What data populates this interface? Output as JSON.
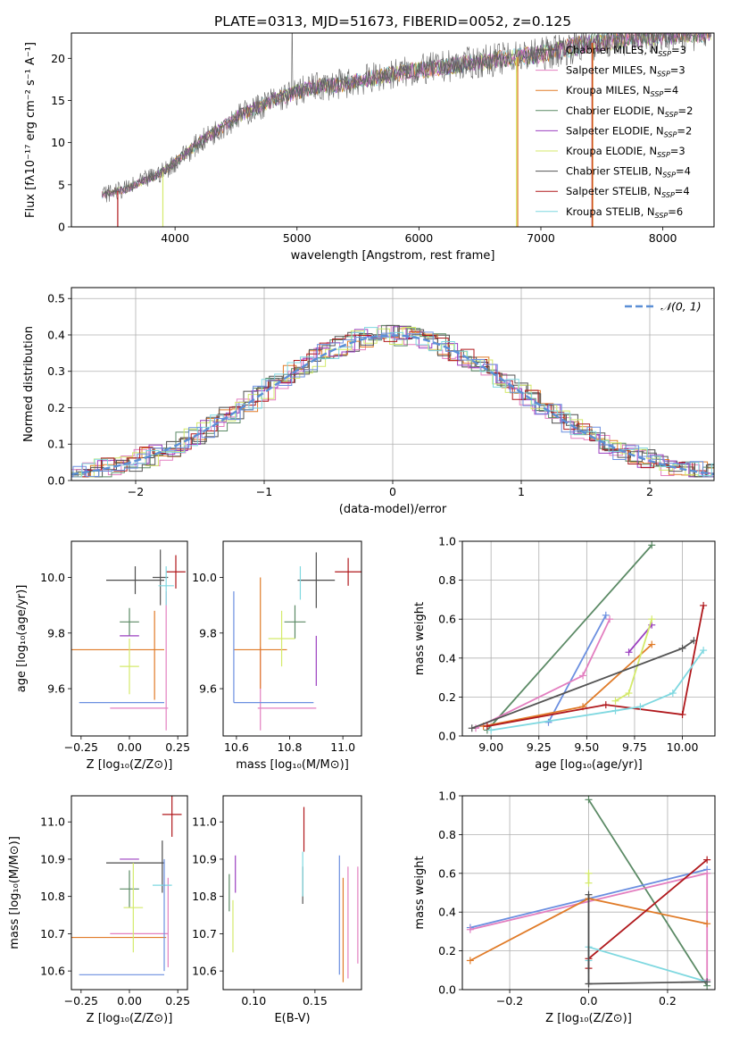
{
  "title": "PLATE=0313, MJD=51673, FIBERID=0052, z=0.125",
  "colors": {
    "Chabrier MILES": "#4d4d4d",
    "Salpeter MILES": "#e37fc0",
    "Kroupa MILES": "#e07b28",
    "Chabrier ELODIE": "#5b8a65",
    "Salpeter ELODIE": "#9b3fc0",
    "Kroupa ELODIE": "#d4ea6b",
    "Chabrier STELIB": "#555555",
    "Salpeter STELIB": "#b0181c",
    "Kroupa STELIB": "#7fd8e0",
    "blue_model": "#6b8fe0",
    "normal_curve": "#5b8fd6"
  },
  "chart_data": [
    {
      "id": "spectrum",
      "type": "line",
      "title": "PLATE=0313, MJD=51673, FIBERID=0052, z=0.125",
      "xlabel": "wavelength [Angstrom, rest frame]",
      "ylabel": "Flux [fλ10⁻¹⁷ erg cm⁻² s⁻¹ A⁻¹]",
      "xlim": [
        3150,
        8420
      ],
      "ylim": [
        0,
        23
      ],
      "xticks": [
        4000,
        5000,
        6000,
        7000,
        8000
      ],
      "yticks": [
        0,
        5,
        10,
        15,
        20
      ],
      "legend": [
        {
          "label": "Chabrier MILES, N",
          "sub": "SSP",
          "tail": "=3"
        },
        {
          "label": "Salpeter MILES, N",
          "sub": "SSP",
          "tail": "=3"
        },
        {
          "label": "Kroupa MILES, N",
          "sub": "SSP",
          "tail": "=4"
        },
        {
          "label": "Chabrier ELODIE, N",
          "sub": "SSP",
          "tail": "=2"
        },
        {
          "label": "Salpeter ELODIE, N",
          "sub": "SSP",
          "tail": "=2"
        },
        {
          "label": "Kroupa ELODIE, N",
          "sub": "SSP",
          "tail": "=3"
        },
        {
          "label": "Chabrier STELIB, N",
          "sub": "SSP",
          "tail": "=4"
        },
        {
          "label": "Salpeter STELIB, N",
          "sub": "SSP",
          "tail": "=4"
        },
        {
          "label": "Kroupa STELIB, N",
          "sub": "SSP",
          "tail": "=6"
        }
      ],
      "legend_position": "right",
      "data_trend": {
        "x": [
          3400,
          3600,
          3900,
          4200,
          4500,
          4800,
          5100,
          5400,
          5800,
          6200,
          6600,
          7000,
          7400,
          7800,
          8200
        ],
        "y": [
          3.8,
          4.5,
          6.5,
          10,
          13,
          15,
          16.5,
          17,
          18.2,
          19,
          19.8,
          20.5,
          21.8,
          22.5,
          23
        ]
      }
    },
    {
      "id": "residuals",
      "type": "histogram",
      "xlabel": "(data-model)/error",
      "ylabel": "Normed distribution",
      "xlim": [
        -2.5,
        2.5
      ],
      "ylim": [
        0,
        0.53
      ],
      "xticks": [
        -2,
        -1,
        0,
        1,
        2
      ],
      "yticks": [
        0.0,
        0.1,
        0.2,
        0.3,
        0.4,
        0.5
      ],
      "legend": "𝒩(0, 1)",
      "legend_position": "top-right",
      "grid": true
    },
    {
      "id": "age_vs_Z",
      "type": "errorbar",
      "xlabel": "Z [log₁₀(Z/Z⊙)]",
      "ylabel": "age  [log₁₀(age/yr)]",
      "xlim": [
        -0.3,
        0.3
      ],
      "ylim": [
        9.43,
        10.13
      ],
      "xticks": [
        -0.25,
        0.0,
        0.25
      ],
      "yticks": [
        9.6,
        9.8,
        10.0
      ],
      "points": [
        {
          "model": "Chabrier MILES",
          "x": 0.03,
          "xerr": 0.15,
          "y": 9.99,
          "yerr": 0.05
        },
        {
          "model": "Salpeter MILES",
          "x": 0.19,
          "xerr": 0.0,
          "y": 9.7,
          "yerr": 0.25
        },
        {
          "model": "Kroupa MILES",
          "x": -0.06,
          "xerr": 0.24,
          "y": 9.74,
          "yerr": 0.0
        },
        {
          "model": "Kroupa MILES",
          "x": 0.13,
          "xerr": 0.0,
          "y": 9.72,
          "yerr": 0.16
        },
        {
          "model": "Chabrier ELODIE",
          "x": 0.0,
          "xerr": 0.05,
          "y": 9.84,
          "yerr": 0.05
        },
        {
          "model": "Salpeter ELODIE",
          "x": 0.0,
          "xerr": 0.05,
          "y": 9.79,
          "yerr": 0.0
        },
        {
          "model": "Kroupa ELODIE",
          "x": 0.0,
          "xerr": 0.05,
          "y": 9.68,
          "yerr": 0.1
        },
        {
          "model": "Chabrier STELIB",
          "x": 0.16,
          "xerr": 0.04,
          "y": 10.0,
          "yerr": 0.1
        },
        {
          "model": "Salpeter STELIB",
          "x": 0.24,
          "xerr": 0.05,
          "y": 10.02,
          "yerr": 0.06
        },
        {
          "model": "Kroupa STELIB",
          "x": 0.19,
          "xerr": 0.04,
          "y": 9.97,
          "yerr": 0.07
        },
        {
          "model": "blue",
          "x": -0.04,
          "xerr": 0.22,
          "y": 9.55,
          "yerr": 0.0
        },
        {
          "model": "Salpeter MILES",
          "x": 0.05,
          "xerr": 0.15,
          "y": 9.53,
          "yerr": 0.0
        }
      ]
    },
    {
      "id": "age_vs_mass",
      "type": "errorbar",
      "xlabel": "mass [log₁₀(M/M⊙)]",
      "xlim": [
        10.55,
        11.07
      ],
      "ylim": [
        9.43,
        10.13
      ],
      "xticks": [
        10.6,
        10.8,
        11.0
      ],
      "yticks": [
        9.6,
        9.8,
        10.0
      ],
      "points": [
        {
          "model": "Chabrier MILES",
          "x": 10.9,
          "xerr": 0.07,
          "y": 9.99,
          "yerr": 0.1
        },
        {
          "model": "Salpeter MILES",
          "x": 10.69,
          "xerr": 0.0,
          "y": 9.6,
          "yerr": 0.15
        },
        {
          "model": "Kroupa MILES",
          "x": 10.69,
          "xerr": 0.0,
          "y": 9.8,
          "yerr": 0.2
        },
        {
          "model": "Kroupa MILES",
          "x": 10.69,
          "xerr": 0.1,
          "y": 9.74,
          "yerr": 0.0
        },
        {
          "model": "Chabrier ELODIE",
          "x": 10.82,
          "xerr": 0.04,
          "y": 9.84,
          "yerr": 0.06
        },
        {
          "model": "Salpeter ELODIE",
          "x": 10.9,
          "xerr": 0.0,
          "y": 9.7,
          "yerr": 0.09
        },
        {
          "model": "Kroupa ELODIE",
          "x": 10.77,
          "xerr": 0.05,
          "y": 9.78,
          "yerr": 0.1
        },
        {
          "model": "Kroupa STELIB",
          "x": 10.84,
          "xerr": 0.0,
          "y": 9.98,
          "yerr": 0.06
        },
        {
          "model": "Salpeter STELIB",
          "x": 11.02,
          "xerr": 0.05,
          "y": 10.02,
          "yerr": 0.05
        },
        {
          "model": "blue",
          "x": 10.59,
          "xerr": 0.0,
          "y": 9.75,
          "yerr": 0.2
        },
        {
          "model": "blue",
          "x": 10.74,
          "xerr": 0.15,
          "y": 9.55,
          "yerr": 0.0
        },
        {
          "model": "Salpeter MILES",
          "x": 10.79,
          "xerr": 0.11,
          "y": 9.53,
          "yerr": 0.0
        }
      ]
    },
    {
      "id": "weight_vs_age",
      "type": "line",
      "xlabel": "age  [log₁₀(age/yr)]",
      "ylabel": "mass weight",
      "xlim": [
        8.85,
        10.17
      ],
      "ylim": [
        0,
        1.0
      ],
      "xticks": [
        9.0,
        9.25,
        9.5,
        9.75,
        10.0
      ],
      "yticks": [
        0.0,
        0.2,
        0.4,
        0.6,
        0.8,
        1.0
      ],
      "grid": true,
      "series": [
        {
          "model": "Chabrier ELODIE",
          "x": [
            8.98,
            9.84
          ],
          "y": [
            0.03,
            0.98
          ]
        },
        {
          "model": "blue",
          "x": [
            9.3,
            9.6
          ],
          "y": [
            0.07,
            0.62
          ]
        },
        {
          "model": "Salpeter MILES",
          "x": [
            8.92,
            9.48,
            9.62
          ],
          "y": [
            0.04,
            0.31,
            0.6
          ]
        },
        {
          "model": "Kroupa MILES",
          "x": [
            8.96,
            9.48,
            9.84
          ],
          "y": [
            0.05,
            0.15,
            0.47
          ]
        },
        {
          "model": "Salpeter ELODIE",
          "x": [
            9.72,
            9.84
          ],
          "y": [
            0.43,
            0.57
          ]
        },
        {
          "model": "Kroupa ELODIE",
          "x": [
            9.65,
            9.72,
            9.84
          ],
          "y": [
            0.18,
            0.22,
            0.6
          ]
        },
        {
          "model": "Chabrier STELIB",
          "x": [
            8.9,
            10.0,
            10.06
          ],
          "y": [
            0.04,
            0.45,
            0.49
          ]
        },
        {
          "model": "Salpeter STELIB",
          "x": [
            8.98,
            9.6,
            10.0,
            10.11
          ],
          "y": [
            0.05,
            0.16,
            0.11,
            0.67
          ]
        },
        {
          "model": "Kroupa STELIB",
          "x": [
            9.0,
            9.65,
            9.78,
            9.95,
            10.11
          ],
          "y": [
            0.03,
            0.13,
            0.15,
            0.22,
            0.44
          ]
        }
      ]
    },
    {
      "id": "mass_vs_Z",
      "type": "errorbar",
      "xlabel": "Z [log₁₀(Z/Z⊙)]",
      "ylabel": "mass [log₁₀(M/M⊙)]",
      "xlim": [
        -0.3,
        0.3
      ],
      "ylim": [
        10.55,
        11.07
      ],
      "xticks": [
        -0.25,
        0.0,
        0.25
      ],
      "yticks": [
        10.6,
        10.7,
        10.8,
        10.9,
        11.0
      ],
      "points": [
        {
          "model": "Chabrier MILES",
          "x": 0.03,
          "xerr": 0.15,
          "y": 10.89,
          "yerr": 0.0
        },
        {
          "model": "Chabrier MILES",
          "x": 0.17,
          "xerr": 0.0,
          "y": 10.88,
          "yerr": 0.07
        },
        {
          "model": "Salpeter MILES",
          "x": 0.2,
          "xerr": 0.0,
          "y": 10.73,
          "yerr": 0.12
        },
        {
          "model": "Salpeter MILES",
          "x": 0.05,
          "xerr": 0.15,
          "y": 10.7,
          "yerr": 0.0
        },
        {
          "model": "Kroupa MILES",
          "x": -0.06,
          "xerr": 0.25,
          "y": 10.69,
          "yerr": 0.0
        },
        {
          "model": "Chabrier ELODIE",
          "x": 0.0,
          "xerr": 0.05,
          "y": 10.82,
          "yerr": 0.05
        },
        {
          "model": "Salpeter ELODIE",
          "x": 0.0,
          "xerr": 0.05,
          "y": 10.9,
          "yerr": 0.0
        },
        {
          "model": "Kroupa ELODIE",
          "x": 0.02,
          "xerr": 0.05,
          "y": 10.77,
          "yerr": 0.12
        },
        {
          "model": "Kroupa STELIB",
          "x": 0.17,
          "xerr": 0.05,
          "y": 10.83,
          "yerr": 0.0
        },
        {
          "model": "Salpeter STELIB",
          "x": 0.22,
          "xerr": 0.05,
          "y": 11.02,
          "yerr": 0.06
        },
        {
          "model": "blue",
          "x": -0.04,
          "xerr": 0.22,
          "y": 10.59,
          "yerr": 0.0
        },
        {
          "model": "blue",
          "x": 0.18,
          "xerr": 0.0,
          "y": 10.75,
          "yerr": 0.15
        }
      ]
    },
    {
      "id": "mass_vs_EBV",
      "type": "errorbar",
      "xlabel": "E(B-V)",
      "xlim": [
        0.075,
        0.188
      ],
      "ylim": [
        10.55,
        11.07
      ],
      "xticks": [
        0.1,
        0.15
      ],
      "yticks": [
        10.6,
        10.7,
        10.8,
        10.9,
        11.0
      ],
      "points": [
        {
          "model": "Chabrier ELODIE",
          "x": 0.08,
          "xerr": 0.0,
          "y": 10.81,
          "yerr": 0.05
        },
        {
          "model": "Kroupa ELODIE",
          "x": 0.083,
          "xerr": 0.0,
          "y": 10.72,
          "yerr": 0.07
        },
        {
          "model": "Salpeter ELODIE",
          "x": 0.085,
          "xerr": 0.0,
          "y": 10.86,
          "yerr": 0.05
        },
        {
          "model": "Chabrier STELIB",
          "x": 0.14,
          "xerr": 0.0,
          "y": 10.83,
          "yerr": 0.05
        },
        {
          "model": "Salpeter STELIB",
          "x": 0.141,
          "xerr": 0.0,
          "y": 10.98,
          "yerr": 0.06
        },
        {
          "model": "Kroupa STELIB",
          "x": 0.14,
          "xerr": 0.0,
          "y": 10.86,
          "yerr": 0.06
        },
        {
          "model": "blue",
          "x": 0.17,
          "xerr": 0.0,
          "y": 10.75,
          "yerr": 0.16
        },
        {
          "model": "Kroupa MILES",
          "x": 0.173,
          "xerr": 0.0,
          "y": 10.71,
          "yerr": 0.14
        },
        {
          "model": "Salpeter MILES",
          "x": 0.177,
          "xerr": 0.0,
          "y": 10.73,
          "yerr": 0.15
        },
        {
          "model": "Salpeter MILES",
          "x": 0.185,
          "xerr": 0.0,
          "y": 10.75,
          "yerr": 0.13
        }
      ]
    },
    {
      "id": "weight_vs_Z",
      "type": "line",
      "xlabel": "Z [log₁₀(Z/Z⊙)]",
      "ylabel": "mass weight",
      "xlim": [
        -0.32,
        0.32
      ],
      "ylim": [
        0,
        1.0
      ],
      "xticks": [
        -0.2,
        0.0,
        0.2
      ],
      "yticks": [
        0.0,
        0.2,
        0.4,
        0.6,
        0.8,
        1.0
      ],
      "grid": true,
      "series": [
        {
          "model": "Chabrier ELODIE",
          "x": [
            0.0,
            0.3
          ],
          "y": [
            0.98,
            0.02
          ]
        },
        {
          "model": "blue",
          "x": [
            -0.3,
            0.3
          ],
          "y": [
            0.32,
            0.62
          ]
        },
        {
          "model": "Salpeter MILES",
          "x": [
            -0.3,
            0.3,
            0.3
          ],
          "y": [
            0.31,
            0.6,
            0.05
          ]
        },
        {
          "model": "Kroupa MILES",
          "x": [
            -0.3,
            0.0,
            0.3
          ],
          "y": [
            0.15,
            0.47,
            0.34
          ]
        },
        {
          "model": "Salpeter STELIB",
          "x": [
            0.0,
            0.0,
            0.3
          ],
          "y": [
            0.11,
            0.16,
            0.67
          ]
        },
        {
          "model": "Kroupa STELIB",
          "x": [
            0.0,
            0.0,
            0.3
          ],
          "y": [
            0.15,
            0.22,
            0.04
          ]
        },
        {
          "model": "Chabrier STELIB",
          "x": [
            0.0,
            0.3
          ],
          "y": [
            0.03,
            0.04
          ]
        },
        {
          "model": "Chabrier MILES",
          "x": [
            0.0,
            0.0
          ],
          "y": [
            0.03,
            0.49
          ]
        },
        {
          "model": "Kroupa ELODIE",
          "x": [
            0.0,
            0.0
          ],
          "y": [
            0.55,
            0.6
          ]
        }
      ]
    }
  ]
}
